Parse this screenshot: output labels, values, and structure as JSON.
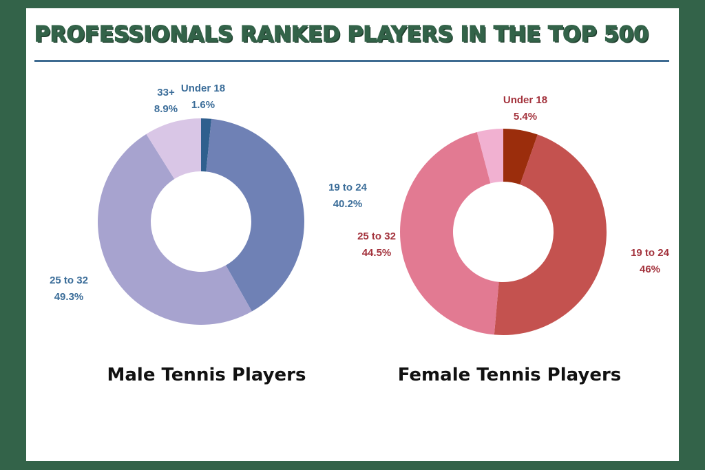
{
  "title": "PROFESSIONALS RANKED PLAYERS IN THE TOP 500",
  "chart_data": [
    {
      "type": "pie",
      "caption": "Male Tennis Players",
      "label_color": "#3b6d99",
      "slices": [
        {
          "label": "Under 18",
          "value": 1.6,
          "text": "1.6%",
          "color": "#2f5f8e"
        },
        {
          "label": "19 to 24",
          "value": 40.2,
          "text": "40.2%",
          "color": "#6f81b5"
        },
        {
          "label": "25 to 32",
          "value": 49.3,
          "text": "49.3%",
          "color": "#a7a3cf"
        },
        {
          "label": "33+",
          "value": 8.9,
          "text": "8.9%",
          "color": "#d9c6e6"
        }
      ]
    },
    {
      "type": "pie",
      "caption": "Female Tennis Players",
      "label_color": "#a3323c",
      "slices": [
        {
          "label": "Under 18",
          "value": 5.4,
          "text": "5.4%",
          "color": "#9b2d0c"
        },
        {
          "label": "19 to 24",
          "value": 46,
          "text": "46%",
          "color": "#c4524f"
        },
        {
          "label": "25 to 32",
          "value": 44.5,
          "text": "44.5%",
          "color": "#e27a92"
        },
        {
          "label": "",
          "value": 4.1,
          "text": "",
          "color": "#f1b1d1"
        }
      ]
    }
  ]
}
